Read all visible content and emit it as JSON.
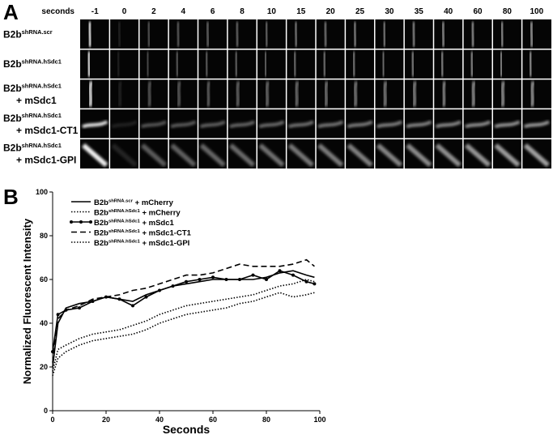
{
  "panel_a": {
    "label": "A",
    "time_label": "seconds",
    "timepoints": [
      -1,
      0,
      2,
      4,
      6,
      8,
      10,
      15,
      20,
      25,
      30,
      35,
      40,
      60,
      80,
      100
    ],
    "rows": [
      {
        "base": "B2b",
        "sup": "shRNA.scr"
      },
      {
        "base": "B2b",
        "sup": "shRNA.hSdc1"
      },
      {
        "base": "B2b",
        "sup": "shRNA.hSdc1",
        "line2": "+ mSdc1"
      },
      {
        "base": "B2b",
        "sup": "shRNA.hSdc1",
        "line2": "+ mSdc1-CT1"
      },
      {
        "base": "B2b",
        "sup": "shRNA.hSdc1",
        "line2": "+ mSdc1-GPI"
      }
    ]
  },
  "panel_b_label": "B",
  "chart_data": {
    "type": "line",
    "x_label": "Seconds",
    "y_label": "Normalized Fluorescent Intensity",
    "xlim": [
      0,
      100
    ],
    "ylim": [
      0,
      100
    ],
    "xticks": [
      0,
      20,
      40,
      60,
      80,
      100
    ],
    "yticks": [
      0,
      20,
      40,
      60,
      80,
      100
    ],
    "x": [
      0,
      2,
      5,
      10,
      15,
      20,
      25,
      30,
      35,
      40,
      45,
      50,
      55,
      60,
      65,
      70,
      75,
      80,
      85,
      90,
      95,
      98
    ],
    "series": [
      {
        "name": {
          "base": "B2b",
          "sup": "shRNA.scr",
          "rest": " + mCherry"
        },
        "color": "#000000",
        "line_style": "solid",
        "values": [
          20,
          40,
          47,
          49,
          50,
          52,
          51,
          50,
          53,
          55,
          57,
          58,
          59,
          60,
          60,
          60,
          60,
          61,
          63,
          64,
          62,
          61
        ]
      },
      {
        "name": {
          "base": "B2b",
          "sup": "shRNA.hSdc1",
          "rest": " + mCherry"
        },
        "color": "#000000",
        "line_style": "dotted",
        "values": [
          18,
          28,
          30,
          33,
          35,
          36,
          37,
          39,
          41,
          44,
          46,
          48,
          49,
          50,
          51,
          52,
          53,
          55,
          57,
          58,
          60,
          59
        ]
      },
      {
        "name": {
          "base": "B2b",
          "sup": "shRNA.hSdc1",
          "rest": " + mSdc1"
        },
        "color": "#000000",
        "line_style": "solid",
        "marker": "circle",
        "values": [
          27,
          44,
          46,
          47,
          50,
          52,
          51,
          48,
          52,
          55,
          57,
          59,
          60,
          61,
          60,
          60,
          62,
          60,
          64,
          62,
          59,
          58
        ]
      },
      {
        "name": {
          "base": "B2b",
          "sup": "shRNA.hSdc1",
          "rest": " + mSdc1-CT1"
        },
        "color": "#000000",
        "line_style": "dashed",
        "values": [
          22,
          42,
          46,
          48,
          51,
          52,
          53,
          55,
          56,
          58,
          60,
          62,
          62,
          63,
          65,
          67,
          66,
          66,
          66,
          67,
          69,
          66
        ]
      },
      {
        "name": {
          "base": "B2b",
          "sup": "shRNA.hSdc1",
          "rest": " + mSdc1-GPI"
        },
        "color": "#000000",
        "line_style": "dotted",
        "values": [
          16,
          24,
          27,
          30,
          32,
          33,
          34,
          35,
          37,
          40,
          42,
          44,
          45,
          46,
          47,
          49,
          50,
          52,
          54,
          52,
          53,
          54
        ]
      }
    ]
  }
}
